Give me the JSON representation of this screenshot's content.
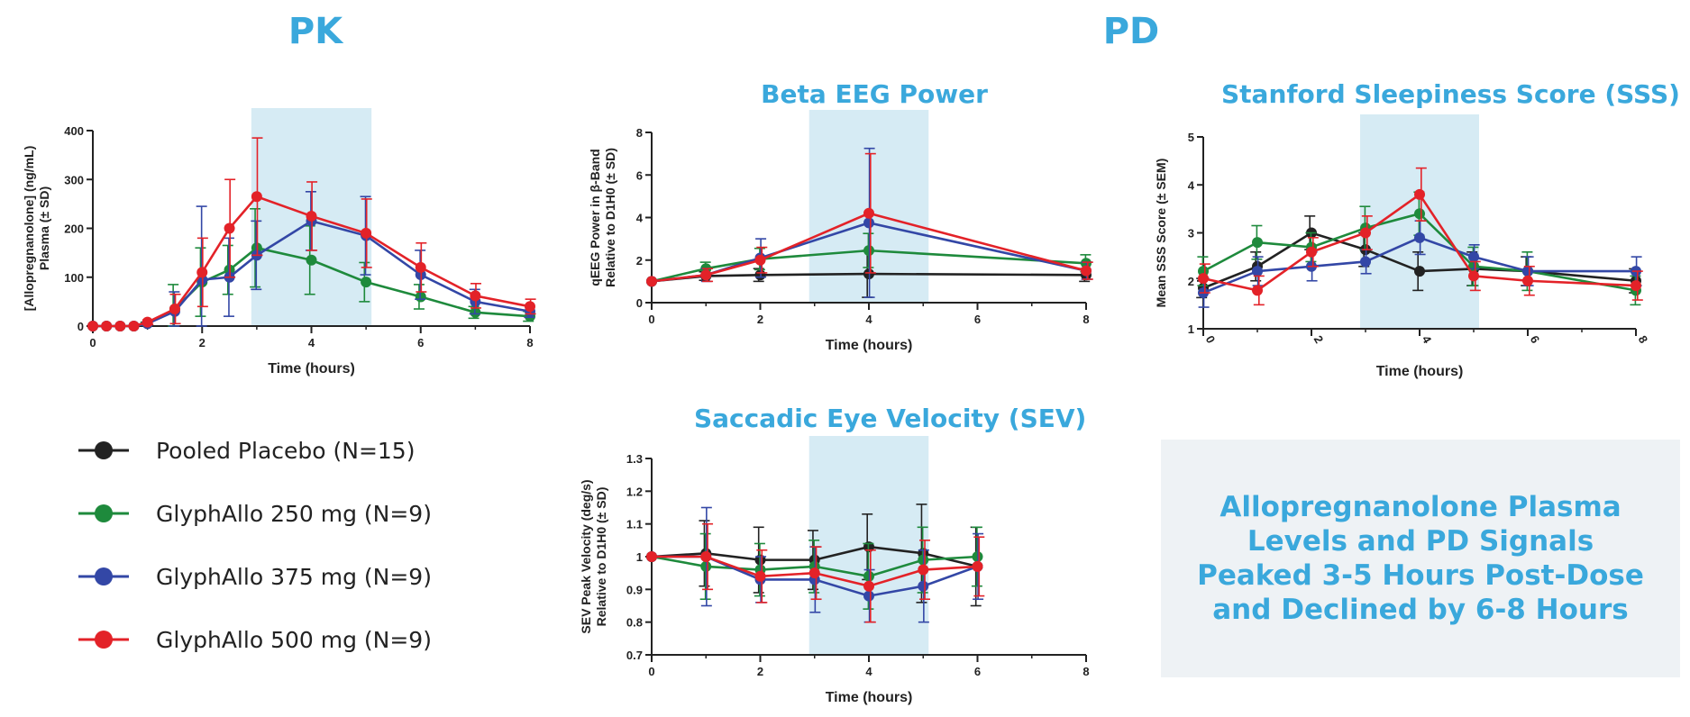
{
  "header": {
    "pk_title": "PK",
    "pd_title": "PD"
  },
  "legend": [
    {
      "label": "Pooled Placebo (N=15)",
      "color": "#222222"
    },
    {
      "label": "GlyphAllo 250 mg (N=9)",
      "color": "#1e8a3c"
    },
    {
      "label": "GlyphAllo 375 mg (N=9)",
      "color": "#3347a6"
    },
    {
      "label": "GlyphAllo 500 mg (N=9)",
      "color": "#e32228"
    }
  ],
  "callout": {
    "text": "Allopregnanolone Plasma Levels and PD Signals Peaked 3-5 Hours Post-Dose and Declined by 6-8 Hours"
  },
  "chart_data": [
    {
      "id": "pk",
      "type": "line",
      "title": "",
      "xlabel": "Time (hours)",
      "ylabel": "[Allopregnanolone] (ng/mL) Plasma (± SD)",
      "xlim": [
        0,
        8
      ],
      "ylim": [
        0,
        400
      ],
      "xticks": [
        0,
        2,
        4,
        6,
        8
      ],
      "yticks": [
        0,
        100,
        200,
        300,
        400
      ],
      "shaded_x": [
        2.9,
        5.1
      ],
      "series": [
        {
          "name": "GlyphAllo 250 mg (N=9)",
          "color": "#1e8a3c",
          "x": [
            0,
            0.25,
            0.5,
            0.75,
            1,
            1.5,
            2,
            2.5,
            3,
            4,
            5,
            6,
            7,
            8
          ],
          "y": [
            0,
            0,
            0,
            0,
            5,
            35,
            90,
            115,
            160,
            135,
            90,
            60,
            28,
            20
          ],
          "err": [
            0,
            0,
            0,
            0,
            3,
            50,
            70,
            50,
            80,
            70,
            40,
            25,
            12,
            10
          ]
        },
        {
          "name": "GlyphAllo 375 mg (N=9)",
          "color": "#3347a6",
          "x": [
            0,
            0.25,
            0.5,
            0.75,
            1,
            1.5,
            2,
            2.5,
            3,
            4,
            5,
            6,
            7,
            8
          ],
          "y": [
            0,
            0,
            0,
            0,
            5,
            30,
            95,
            100,
            145,
            215,
            185,
            105,
            50,
            30
          ],
          "err": [
            0,
            0,
            0,
            0,
            3,
            40,
            150,
            80,
            70,
            60,
            80,
            50,
            25,
            12
          ]
        },
        {
          "name": "GlyphAllo 500 mg (N=9)",
          "color": "#e32228",
          "x": [
            0,
            0.25,
            0.5,
            0.75,
            1,
            1.5,
            2,
            2.5,
            3,
            4,
            5,
            6,
            7,
            8
          ],
          "y": [
            0,
            0,
            0,
            0,
            8,
            35,
            110,
            200,
            265,
            225,
            190,
            120,
            62,
            40
          ],
          "err": [
            0,
            0,
            0,
            0,
            5,
            30,
            70,
            100,
            120,
            70,
            70,
            50,
            25,
            15
          ]
        }
      ]
    },
    {
      "id": "beta",
      "type": "line",
      "title": "Beta EEG Power",
      "xlabel": "Time (hours)",
      "ylabel": "qEEG Power in β-Band Relative to D1H0 (± SD)",
      "xlim": [
        0,
        8
      ],
      "ylim": [
        0,
        8
      ],
      "xticks": [
        0,
        2,
        4,
        6,
        8
      ],
      "yticks": [
        0,
        2,
        4,
        6,
        8
      ],
      "shaded_x": [
        2.9,
        5.1
      ],
      "series": [
        {
          "name": "Pooled Placebo (N=15)",
          "color": "#222222",
          "x": [
            0,
            1,
            2,
            4,
            8
          ],
          "y": [
            1,
            1.25,
            1.3,
            1.35,
            1.3
          ],
          "err": [
            0,
            0.2,
            0.3,
            1.1,
            0.3
          ]
        },
        {
          "name": "GlyphAllo 250 mg (N=9)",
          "color": "#1e8a3c",
          "x": [
            0,
            1,
            2,
            4,
            8
          ],
          "y": [
            1,
            1.6,
            2.05,
            2.45,
            1.85
          ],
          "err": [
            0,
            0.3,
            0.5,
            0.8,
            0.4
          ]
        },
        {
          "name": "GlyphAllo 375 mg (N=9)",
          "color": "#3347a6",
          "x": [
            0,
            1,
            2,
            4,
            8
          ],
          "y": [
            1,
            1.3,
            2.1,
            3.75,
            1.5
          ],
          "err": [
            0,
            0.3,
            0.9,
            3.5,
            0.4
          ]
        },
        {
          "name": "GlyphAllo 500 mg (N=9)",
          "color": "#e32228",
          "x": [
            0,
            1,
            2,
            4,
            8
          ],
          "y": [
            1,
            1.3,
            2.0,
            4.2,
            1.5
          ],
          "err": [
            0,
            0.3,
            0.6,
            2.8,
            0.4
          ]
        }
      ]
    },
    {
      "id": "sss",
      "type": "line",
      "title": "Stanford Sleepiness Score (SSS)",
      "xlabel": "Time (hours)",
      "ylabel": "Mean SSS Score (± SEM)",
      "xlim": [
        0,
        8
      ],
      "ylim": [
        1,
        5
      ],
      "xticks": [
        0,
        2,
        4,
        6,
        8
      ],
      "yticks": [
        1,
        2,
        3,
        4,
        5
      ],
      "xtick_rotate": true,
      "shaded_x": [
        2.9,
        5.1
      ],
      "series": [
        {
          "name": "Pooled Placebo (N=15)",
          "color": "#222222",
          "x": [
            0,
            1,
            2,
            3,
            4,
            5,
            6,
            8
          ],
          "y": [
            1.85,
            2.3,
            3.0,
            2.65,
            2.2,
            2.25,
            2.2,
            2.0
          ],
          "err": [
            0.2,
            0.3,
            0.35,
            0.35,
            0.4,
            0.35,
            0.3,
            0.25
          ]
        },
        {
          "name": "GlyphAllo 250 mg (N=9)",
          "color": "#1e8a3c",
          "x": [
            0,
            1,
            2,
            3,
            4,
            5,
            6,
            8
          ],
          "y": [
            2.2,
            2.8,
            2.7,
            3.1,
            3.4,
            2.3,
            2.2,
            1.8
          ],
          "err": [
            0.3,
            0.35,
            0.3,
            0.45,
            0.45,
            0.4,
            0.4,
            0.3
          ]
        },
        {
          "name": "GlyphAllo 375 mg (N=9)",
          "color": "#3347a6",
          "x": [
            0,
            1,
            2,
            3,
            4,
            5,
            6,
            8
          ],
          "y": [
            1.75,
            2.2,
            2.3,
            2.4,
            2.9,
            2.5,
            2.2,
            2.2
          ],
          "err": [
            0.3,
            0.3,
            0.3,
            0.25,
            0.35,
            0.25,
            0.3,
            0.3
          ]
        },
        {
          "name": "GlyphAllo 500 mg (N=9)",
          "color": "#e32228",
          "x": [
            0,
            1,
            2,
            3,
            4,
            5,
            6,
            8
          ],
          "y": [
            2.05,
            1.8,
            2.6,
            3.0,
            3.8,
            2.1,
            2.0,
            1.9
          ],
          "err": [
            0.3,
            0.3,
            0.3,
            0.35,
            0.55,
            0.3,
            0.3,
            0.3
          ]
        }
      ]
    },
    {
      "id": "sev",
      "type": "line",
      "title": "Saccadic Eye Velocity (SEV)",
      "xlabel": "Time (hours)",
      "ylabel": "SEV Peak Velocity (deg/s) Relative to D1H0 (± SD)",
      "xlim": [
        0,
        8
      ],
      "ylim": [
        0.7,
        1.3
      ],
      "xticks": [
        0,
        2,
        4,
        6,
        8
      ],
      "yticks": [
        0.7,
        0.8,
        0.9,
        1.0,
        1.1,
        1.2,
        1.3
      ],
      "shaded_x": [
        2.9,
        5.1
      ],
      "series": [
        {
          "name": "Pooled Placebo (N=15)",
          "color": "#222222",
          "x": [
            0,
            1,
            2,
            3,
            4,
            5,
            6
          ],
          "y": [
            1.0,
            1.01,
            0.99,
            0.99,
            1.03,
            1.01,
            0.97
          ],
          "err": [
            0,
            0.1,
            0.1,
            0.09,
            0.1,
            0.15,
            0.12
          ]
        },
        {
          "name": "GlyphAllo 250 mg (N=9)",
          "color": "#1e8a3c",
          "x": [
            0,
            1,
            2,
            3,
            4,
            5,
            6
          ],
          "y": [
            1.0,
            0.97,
            0.96,
            0.97,
            0.94,
            0.99,
            1.0
          ],
          "err": [
            0,
            0.1,
            0.08,
            0.08,
            0.1,
            0.1,
            0.09
          ]
        },
        {
          "name": "GlyphAllo 375 mg (N=9)",
          "color": "#3347a6",
          "x": [
            0,
            1,
            2,
            3,
            4,
            5,
            6
          ],
          "y": [
            1.0,
            1.0,
            0.93,
            0.93,
            0.88,
            0.91,
            0.97
          ],
          "err": [
            0,
            0.15,
            0.07,
            0.1,
            0.08,
            0.11,
            0.1
          ]
        },
        {
          "name": "GlyphAllo 500 mg (N=9)",
          "color": "#e32228",
          "x": [
            0,
            1,
            2,
            3,
            4,
            5,
            6
          ],
          "y": [
            1.0,
            1.0,
            0.94,
            0.95,
            0.91,
            0.96,
            0.97
          ],
          "err": [
            0,
            0.1,
            0.08,
            0.08,
            0.11,
            0.09,
            0.09
          ]
        }
      ]
    }
  ]
}
